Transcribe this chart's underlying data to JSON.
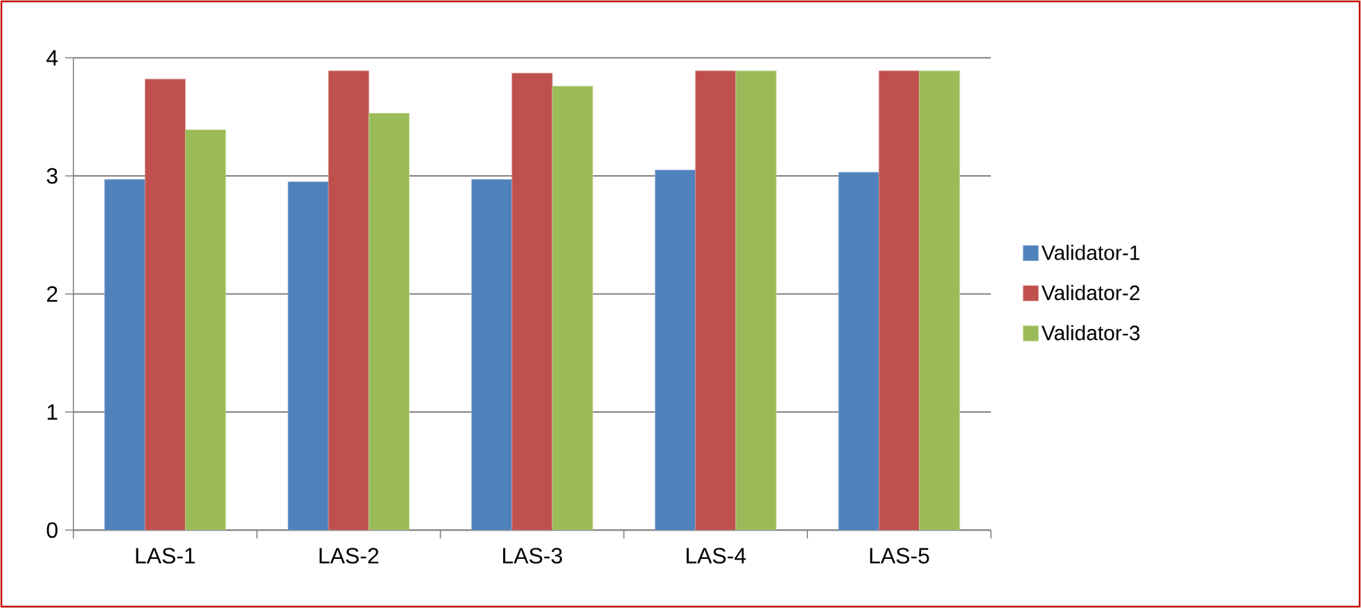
{
  "chart_data": {
    "type": "bar",
    "categories": [
      "LAS-1",
      "LAS-2",
      "LAS-3",
      "LAS-4",
      "LAS-5"
    ],
    "series": [
      {
        "name": "Validator-1",
        "color": "#4f81bd",
        "values": [
          2.97,
          2.95,
          2.97,
          3.05,
          3.03
        ]
      },
      {
        "name": "Validator-2",
        "color": "#c0504d",
        "values": [
          3.82,
          3.89,
          3.87,
          3.89,
          3.89
        ]
      },
      {
        "name": "Validator-3",
        "color": "#9bbb59",
        "values": [
          3.39,
          3.53,
          3.76,
          3.89,
          3.89
        ]
      }
    ],
    "ylim": [
      0,
      4
    ],
    "yticks": [
      0,
      1,
      2,
      3,
      4
    ],
    "grid": "y",
    "legend": "right"
  }
}
